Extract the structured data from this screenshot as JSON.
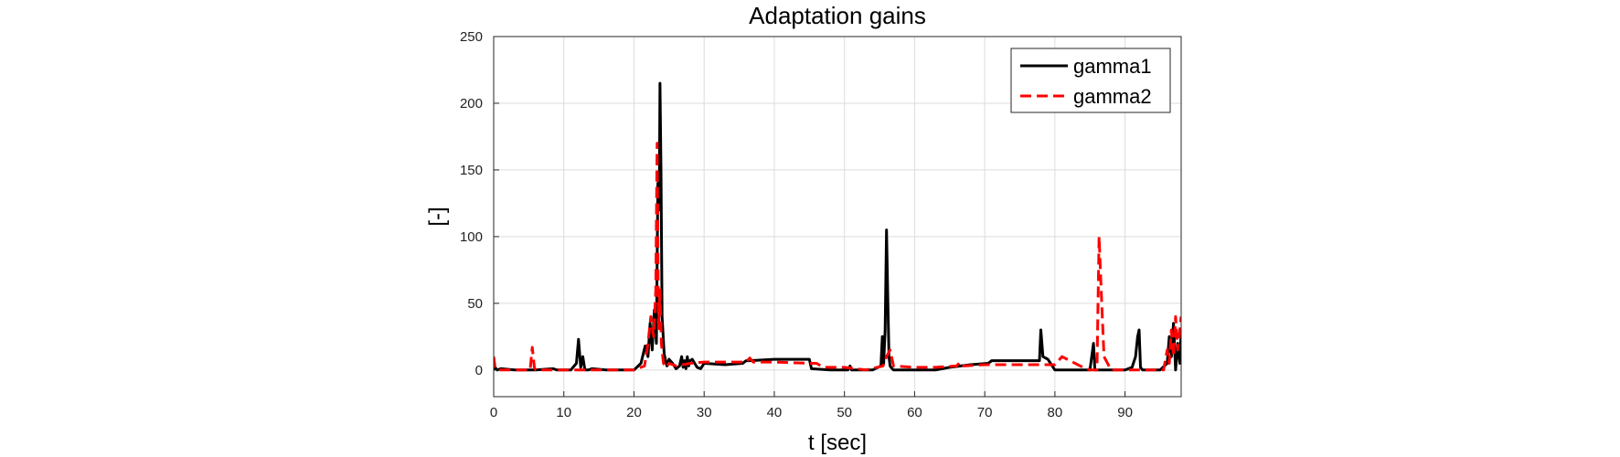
{
  "chart_data": {
    "type": "line",
    "title": "Adaptation gains",
    "xlabel": "t [sec]",
    "ylabel": "[-]",
    "xlim": [
      0,
      98
    ],
    "ylim": [
      -20,
      250
    ],
    "xticks": [
      0,
      10,
      20,
      30,
      40,
      50,
      60,
      70,
      80,
      90
    ],
    "yticks": [
      0,
      50,
      100,
      150,
      200,
      250
    ],
    "grid": true,
    "legend_position": "top-right",
    "series": [
      {
        "name": "gamma1",
        "color": "#000000",
        "style": "solid",
        "x": [
          0,
          0.2,
          0.5,
          1,
          3,
          6,
          8.5,
          9,
          11,
          11.8,
          12.1,
          12.4,
          12.7,
          13,
          13.5,
          14,
          16,
          18,
          20,
          21,
          21.6,
          22,
          22.3,
          22.6,
          22.9,
          23.2,
          23.4,
          23.6,
          23.7,
          23.85,
          24,
          24.3,
          24.7,
          25,
          25.5,
          26,
          26.5,
          26.8,
          27,
          27.2,
          27.4,
          27.6,
          27.8,
          28,
          28.3,
          29,
          29.5,
          30,
          33,
          35.5,
          36,
          36.5,
          40,
          44.5,
          45,
          45.3,
          48,
          50.5,
          50.8,
          51,
          54,
          55.2,
          55.4,
          55.6,
          55.8,
          56,
          56.2,
          56.35,
          56.5,
          56.8,
          57,
          58,
          60,
          63,
          65,
          68,
          70.5,
          71,
          75,
          77.8,
          78,
          78.3,
          79,
          80,
          81,
          85,
          85.5,
          85.7,
          86,
          88,
          90,
          91,
          91.5,
          91.8,
          92,
          92.2,
          92.5,
          93,
          95,
          96,
          96.3,
          96.6,
          96.9,
          97.2,
          97.5,
          97.8,
          98
        ],
        "y": [
          0,
          2,
          0,
          1,
          0,
          0,
          1,
          0,
          0,
          5,
          23,
          2,
          10,
          0,
          0,
          1,
          0,
          0,
          0,
          5,
          18,
          10,
          35,
          15,
          45,
          20,
          140,
          120,
          215,
          150,
          40,
          12,
          3,
          8,
          5,
          1,
          3,
          10,
          2,
          7,
          1,
          10,
          3,
          7,
          8,
          2,
          1,
          5,
          4,
          5,
          7,
          7,
          8,
          8,
          8,
          1,
          0,
          0,
          3,
          0,
          0,
          3,
          25,
          5,
          30,
          105,
          50,
          10,
          3,
          1,
          0,
          0,
          0,
          0,
          2,
          4,
          5,
          7,
          7,
          7,
          30,
          10,
          8,
          0,
          0,
          0,
          20,
          0,
          0,
          0,
          0,
          2,
          10,
          25,
          30,
          2,
          0,
          0,
          0,
          5,
          25,
          10,
          35,
          0,
          20,
          5,
          30
        ]
      },
      {
        "name": "gamma2",
        "color": "#ff0000",
        "style": "dashed",
        "x": [
          0,
          0.2,
          0.5,
          1,
          3,
          5.2,
          5.5,
          5.8,
          6,
          8,
          12,
          16,
          20,
          21.5,
          22,
          22.4,
          22.8,
          23.1,
          23.3,
          23.5,
          23.7,
          23.9,
          24.2,
          24.6,
          25,
          26,
          28,
          30,
          33,
          36,
          36.5,
          37,
          40,
          45,
          46,
          47,
          50,
          53,
          55.5,
          56,
          56.5,
          57,
          60,
          63,
          66,
          66.5,
          67,
          70,
          75,
          80,
          81,
          84,
          85,
          86,
          86.3,
          86.6,
          87,
          88,
          90,
          94,
          95.5,
          96,
          96.3,
          96.6,
          96.9,
          97.2,
          97.5,
          97.8,
          98
        ],
        "y": [
          10,
          2,
          0,
          0,
          0,
          0,
          17,
          2,
          0,
          0,
          0,
          0,
          0,
          3,
          20,
          40,
          25,
          60,
          170,
          30,
          60,
          20,
          5,
          2,
          5,
          3,
          5,
          6,
          6,
          6,
          9,
          6,
          6,
          5,
          5,
          2,
          2,
          0,
          3,
          10,
          15,
          3,
          2,
          2,
          3,
          6,
          3,
          4,
          4,
          4,
          10,
          2,
          0,
          0,
          100,
          60,
          10,
          0,
          0,
          0,
          0,
          15,
          5,
          30,
          10,
          40,
          15,
          30,
          40
        ]
      }
    ]
  }
}
